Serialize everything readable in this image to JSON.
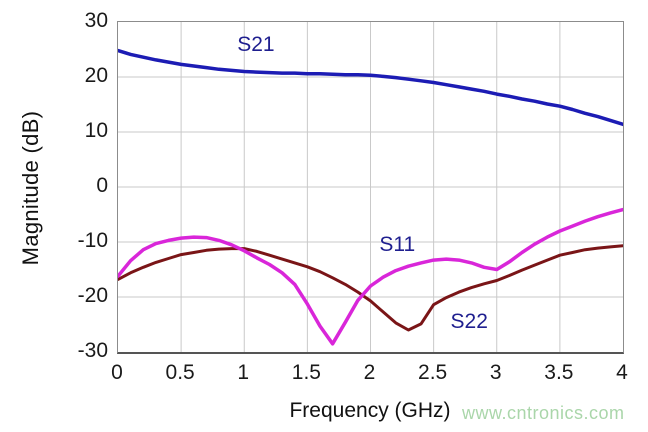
{
  "watermark": "www.cntronics.com",
  "palette": {
    "s21_color": "#1c1cb4",
    "s11_color": "#d926d9",
    "s22_color": "#7a1517",
    "series_label_color": "#1f1f8f",
    "grid_color": "#c9c9c9",
    "frame_color": "#8c8c8c",
    "tick_text_color": "#1a1a1a",
    "watermark_color": "#aad6aa"
  },
  "chart_data": {
    "type": "line",
    "title": "",
    "xlabel": "Frequency (GHz)",
    "ylabel": "Magnitude (dB)",
    "xlim": [
      0,
      4
    ],
    "ylim": [
      -30,
      30
    ],
    "grid": true,
    "x_ticks": [
      "0",
      "0.5",
      "1",
      "1.5",
      "2",
      "2.5",
      "3",
      "3.5",
      "4"
    ],
    "y_ticks": [
      "30",
      "20",
      "10",
      "0",
      "-10",
      "-20",
      "-30"
    ],
    "x": [
      0,
      0.1,
      0.2,
      0.3,
      0.4,
      0.5,
      0.6,
      0.7,
      0.8,
      0.9,
      1.0,
      1.1,
      1.2,
      1.3,
      1.4,
      1.5,
      1.6,
      1.7,
      1.8,
      1.9,
      2.0,
      2.1,
      2.2,
      2.3,
      2.4,
      2.5,
      2.6,
      2.7,
      2.8,
      2.9,
      3.0,
      3.1,
      3.2,
      3.3,
      3.4,
      3.5,
      3.6,
      3.7,
      3.8,
      3.9,
      4.0
    ],
    "series": [
      {
        "name": "S22",
        "color_key": "s22_color",
        "stroke_width": 3,
        "label": "S22",
        "label_pos": {
          "x": 2.79,
          "y": -24.8
        },
        "values": [
          -16.8,
          -15.6,
          -14.6,
          -13.7,
          -13.0,
          -12.3,
          -11.9,
          -11.5,
          -11.3,
          -11.2,
          -11.2,
          -11.7,
          -12.4,
          -13.1,
          -13.8,
          -14.5,
          -15.4,
          -16.5,
          -17.7,
          -19.1,
          -20.7,
          -22.7,
          -24.7,
          -26.0,
          -24.9,
          -21.4,
          -20.1,
          -19.1,
          -18.3,
          -17.6,
          -17.0,
          -16.1,
          -15.1,
          -14.2,
          -13.3,
          -12.4,
          -11.9,
          -11.4,
          -11.1,
          -10.9,
          -10.7
        ]
      },
      {
        "name": "S11",
        "color_key": "s11_color",
        "stroke_width": 3.5,
        "label": "S11",
        "label_pos": {
          "x": 2.22,
          "y": -10.8
        },
        "values": [
          -16.2,
          -13.4,
          -11.4,
          -10.3,
          -9.7,
          -9.3,
          -9.1,
          -9.2,
          -9.7,
          -10.5,
          -11.6,
          -12.9,
          -14.1,
          -15.6,
          -17.7,
          -21.3,
          -25.3,
          -28.5,
          -24.6,
          -20.6,
          -18.0,
          -16.4,
          -15.2,
          -14.4,
          -13.8,
          -13.3,
          -13.1,
          -13.3,
          -13.8,
          -14.6,
          -15.0,
          -13.6,
          -11.9,
          -10.4,
          -9.1,
          -8.0,
          -7.1,
          -6.2,
          -5.4,
          -4.7,
          -4.1
        ]
      },
      {
        "name": "S21",
        "color_key": "s21_color",
        "stroke_width": 3.5,
        "label": "S21",
        "label_pos": {
          "x": 1.1,
          "y": 25.7
        },
        "values": [
          24.8,
          24.1,
          23.6,
          23.1,
          22.7,
          22.3,
          22.0,
          21.7,
          21.4,
          21.2,
          21.0,
          20.9,
          20.8,
          20.7,
          20.7,
          20.6,
          20.6,
          20.5,
          20.4,
          20.4,
          20.3,
          20.1,
          19.9,
          19.6,
          19.3,
          19.0,
          18.6,
          18.2,
          17.8,
          17.4,
          16.9,
          16.5,
          16.0,
          15.6,
          15.1,
          14.7,
          14.1,
          13.4,
          12.8,
          12.1,
          11.4
        ]
      }
    ]
  }
}
